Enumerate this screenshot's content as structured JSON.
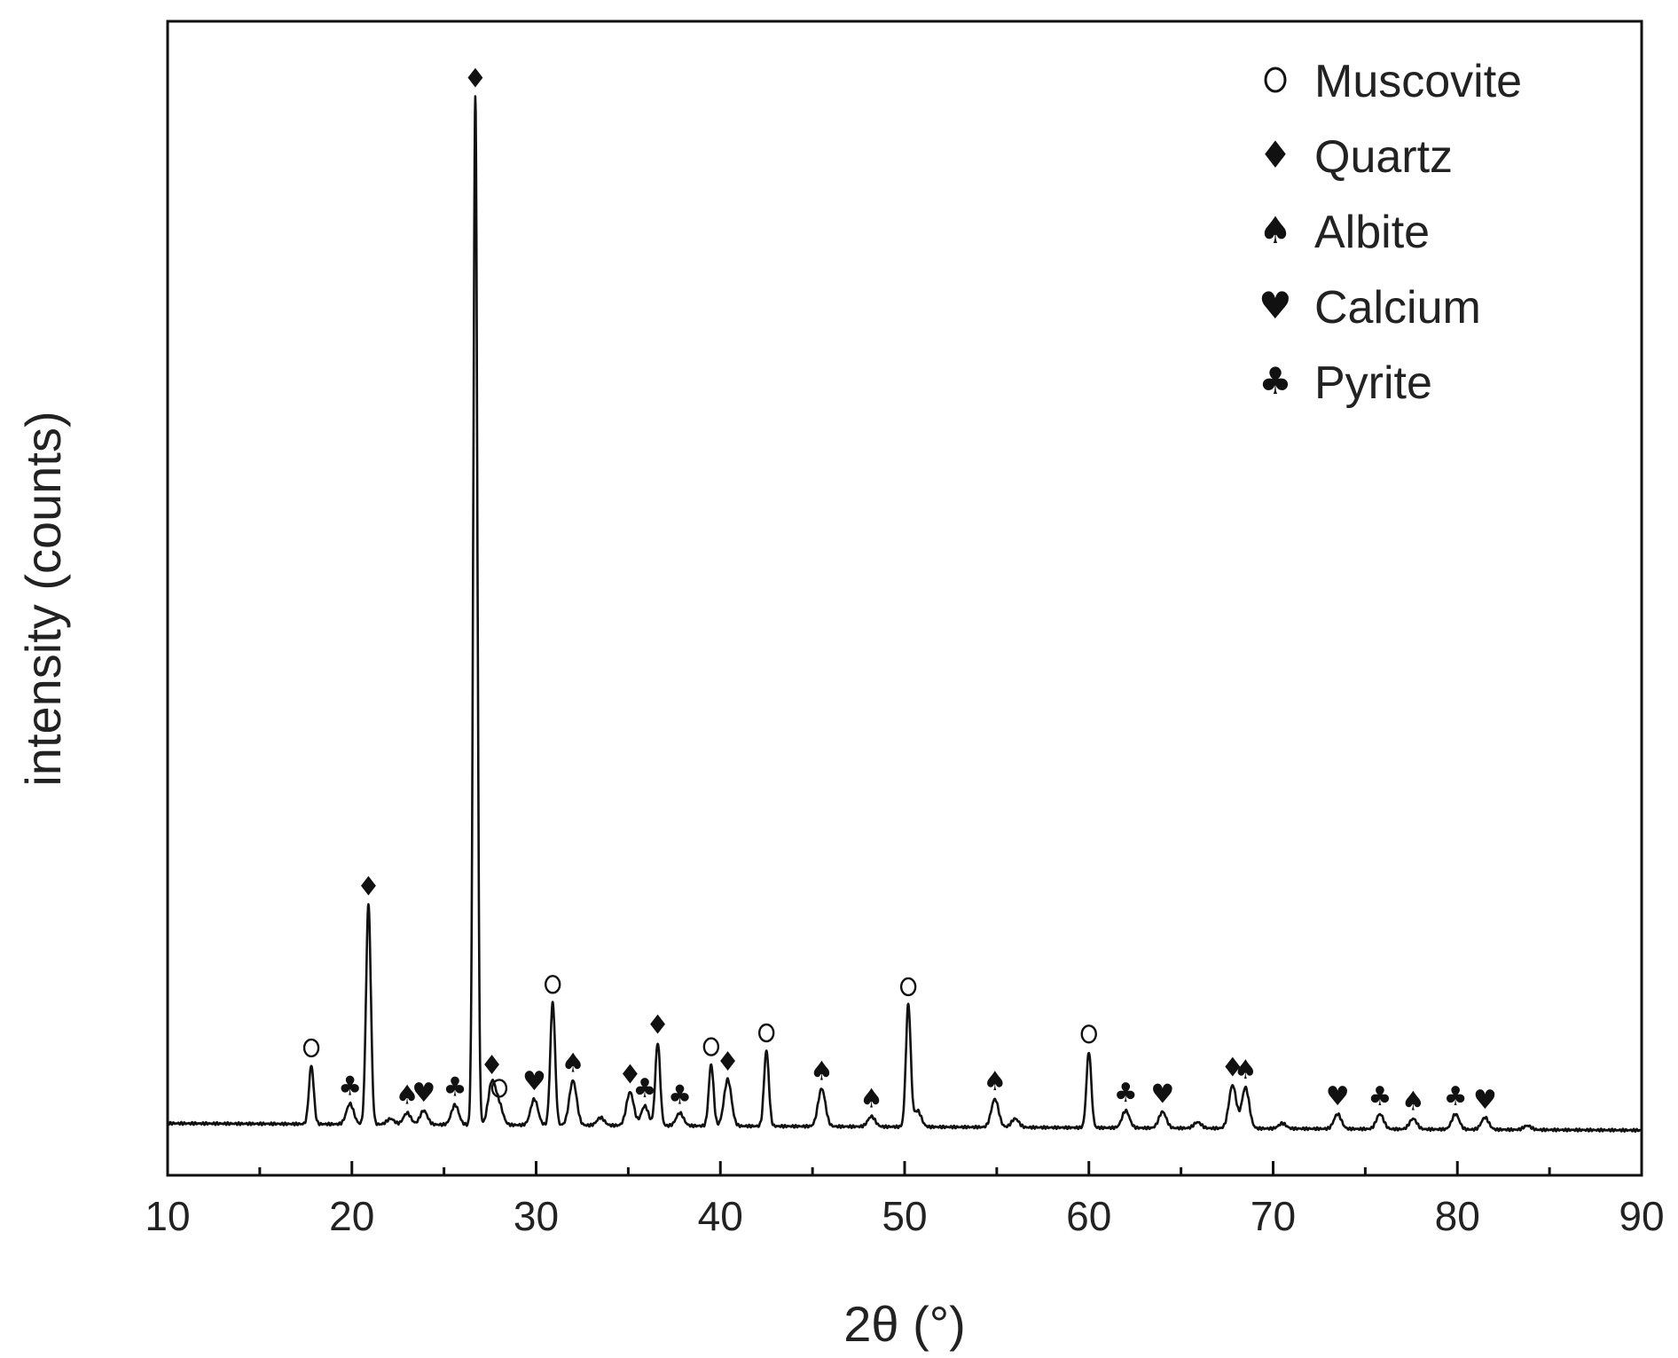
{
  "chart_data": {
    "type": "line",
    "title": "",
    "xlabel": "2θ (°)",
    "ylabel": "intensity (counts)",
    "xlim": [
      10,
      90
    ],
    "ylim": [
      0,
      100
    ],
    "x_ticks": [
      10,
      20,
      30,
      40,
      50,
      60,
      70,
      80,
      90
    ],
    "x_ticks_label_text": [
      "10",
      "20",
      "30",
      "40",
      "50",
      "60",
      "70",
      "80",
      "90"
    ],
    "x_minor_tick_step": 5,
    "y_ticks_shown": false,
    "grid": false,
    "baseline": 4.5,
    "tail_drop": 0.6,
    "legend_position": "top-right",
    "phases": [
      {
        "name": "Muscovite",
        "icon": "circle-open-icon",
        "symbol": "o"
      },
      {
        "name": "Quartz",
        "icon": "diamond-icon",
        "symbol": "♦"
      },
      {
        "name": "Albite",
        "icon": "spade-icon",
        "symbol": "♠"
      },
      {
        "name": "Calcium",
        "icon": "heart-icon",
        "symbol": "♥"
      },
      {
        "name": "Pyrite",
        "icon": "club-icon",
        "symbol": "♣"
      }
    ],
    "peaks": [
      {
        "x": 17.8,
        "y": 9.5,
        "phase": "Muscovite"
      },
      {
        "x": 19.9,
        "y": 6.2,
        "phase": "Pyrite"
      },
      {
        "x": 20.9,
        "y": 23.5,
        "phase": "Quartz"
      },
      {
        "x": 23.0,
        "y": 5.4,
        "phase": "Albite"
      },
      {
        "x": 23.9,
        "y": 5.6,
        "phase": "Calcium"
      },
      {
        "x": 25.6,
        "y": 6.1,
        "phase": "Pyrite"
      },
      {
        "x": 26.7,
        "y": 93.5,
        "phase": "Quartz"
      },
      {
        "x": 27.6,
        "y": 8.0,
        "phase": "Quartz"
      },
      {
        "x": 28.0,
        "y": 6.0,
        "phase": "Muscovite"
      },
      {
        "x": 29.9,
        "y": 6.6,
        "phase": "Calcium"
      },
      {
        "x": 30.9,
        "y": 15.0,
        "phase": "Muscovite"
      },
      {
        "x": 32.0,
        "y": 8.2,
        "phase": "Albite"
      },
      {
        "x": 35.1,
        "y": 7.2,
        "phase": "Quartz"
      },
      {
        "x": 35.9,
        "y": 6.0,
        "phase": "Pyrite"
      },
      {
        "x": 36.6,
        "y": 11.5,
        "phase": "Quartz"
      },
      {
        "x": 37.8,
        "y": 5.4,
        "phase": "Pyrite"
      },
      {
        "x": 39.5,
        "y": 9.6,
        "phase": "Muscovite"
      },
      {
        "x": 40.4,
        "y": 8.3,
        "phase": "Quartz"
      },
      {
        "x": 42.5,
        "y": 10.8,
        "phase": "Muscovite"
      },
      {
        "x": 45.5,
        "y": 7.5,
        "phase": "Albite"
      },
      {
        "x": 48.2,
        "y": 5.1,
        "phase": "Albite"
      },
      {
        "x": 50.2,
        "y": 14.8,
        "phase": "Muscovite"
      },
      {
        "x": 54.9,
        "y": 6.6,
        "phase": "Albite"
      },
      {
        "x": 60.0,
        "y": 10.7,
        "phase": "Muscovite"
      },
      {
        "x": 62.0,
        "y": 5.6,
        "phase": "Pyrite"
      },
      {
        "x": 64.0,
        "y": 5.5,
        "phase": "Calcium"
      },
      {
        "x": 67.8,
        "y": 7.8,
        "phase": "Quartz"
      },
      {
        "x": 68.5,
        "y": 7.6,
        "phase": "Albite"
      },
      {
        "x": 73.5,
        "y": 5.3,
        "phase": "Calcium"
      },
      {
        "x": 75.8,
        "y": 5.3,
        "phase": "Pyrite"
      },
      {
        "x": 77.6,
        "y": 4.9,
        "phase": "Albite"
      },
      {
        "x": 79.9,
        "y": 5.3,
        "phase": "Pyrite"
      },
      {
        "x": 81.5,
        "y": 5.0,
        "phase": "Calcium"
      }
    ],
    "unmarked_bumps": [
      {
        "x": 22.1,
        "y": 4.9
      },
      {
        "x": 33.5,
        "y": 5.0
      },
      {
        "x": 50.7,
        "y": 5.6
      },
      {
        "x": 56.0,
        "y": 4.9
      },
      {
        "x": 65.9,
        "y": 4.6
      },
      {
        "x": 70.5,
        "y": 4.5
      },
      {
        "x": 83.8,
        "y": 4.3
      }
    ]
  }
}
